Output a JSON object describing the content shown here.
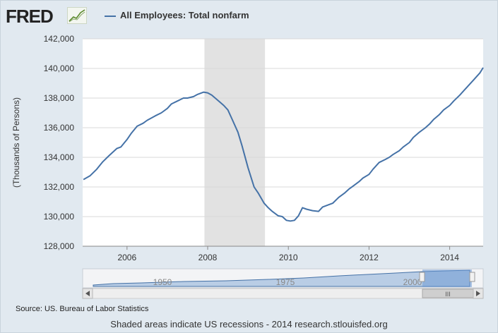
{
  "header": {
    "logo_text": "FRED",
    "logo_icon": "fred-graph-icon",
    "series_color": "#4572a7"
  },
  "footer": {
    "source": "Source: US. Bureau of Labor Statistics",
    "note": "Shaded areas indicate US recessions - 2014 research.stlouisfed.org"
  },
  "navigator": {
    "tick_labels": [
      "1950",
      "1975",
      "2000"
    ],
    "scroll_left_icon": "left-arrow-icon",
    "scroll_right_icon": "right-arrow-icon",
    "grip_label": "III"
  },
  "chart_data": {
    "type": "line",
    "title": "",
    "xlabel": "",
    "ylabel": "(Thousands of Persons)",
    "xlim": [
      2004.9,
      2014.83
    ],
    "ylim": [
      128000,
      142000
    ],
    "yticks": [
      128000,
      130000,
      132000,
      134000,
      136000,
      138000,
      140000,
      142000
    ],
    "ytick_labels": [
      "128,000",
      "130,000",
      "132,000",
      "134,000",
      "136,000",
      "138,000",
      "140,000",
      "142,000"
    ],
    "xticks": [
      2006,
      2008,
      2010,
      2012,
      2014
    ],
    "xtick_labels": [
      "2006",
      "2008",
      "2010",
      "2012",
      "2014"
    ],
    "grid": true,
    "legend_position": "top-left",
    "recession_band": [
      2007.92,
      2009.42
    ],
    "series": [
      {
        "name": "All Employees: Total nonfarm",
        "color": "#4572a7",
        "x": [
          2004.92,
          2005.08,
          2005.25,
          2005.4,
          2005.55,
          2005.75,
          2005.85,
          2006.0,
          2006.1,
          2006.25,
          2006.4,
          2006.5,
          2006.7,
          2006.85,
          2007.0,
          2007.1,
          2007.25,
          2007.4,
          2007.5,
          2007.65,
          2007.75,
          2007.9,
          2008.0,
          2008.1,
          2008.25,
          2008.4,
          2008.5,
          2008.6,
          2008.75,
          2008.85,
          2009.0,
          2009.15,
          2009.25,
          2009.4,
          2009.5,
          2009.6,
          2009.75,
          2009.85,
          2009.95,
          2010.05,
          2010.15,
          2010.25,
          2010.35,
          2010.45,
          2010.6,
          2010.75,
          2010.85,
          2011.0,
          2011.1,
          2011.25,
          2011.4,
          2011.5,
          2011.6,
          2011.75,
          2011.85,
          2012.0,
          2012.1,
          2012.25,
          2012.4,
          2012.5,
          2012.6,
          2012.75,
          2012.85,
          2013.0,
          2013.1,
          2013.25,
          2013.4,
          2013.5,
          2013.6,
          2013.75,
          2013.85,
          2014.0,
          2014.1,
          2014.25,
          2014.4,
          2014.5,
          2014.6,
          2014.75,
          2014.83
        ],
        "values": [
          132500,
          132750,
          133200,
          133700,
          134100,
          134600,
          134700,
          135200,
          135600,
          136100,
          136300,
          136500,
          136800,
          137000,
          137300,
          137600,
          137800,
          138000,
          138000,
          138100,
          138250,
          138400,
          138350,
          138200,
          137850,
          137500,
          137200,
          136600,
          135700,
          134800,
          133300,
          132000,
          131600,
          130900,
          130600,
          130350,
          130050,
          130000,
          129750,
          129700,
          129750,
          130050,
          130600,
          130500,
          130400,
          130350,
          130650,
          130800,
          130900,
          131300,
          131600,
          131850,
          132050,
          132350,
          132600,
          132850,
          133200,
          133650,
          133850,
          134000,
          134200,
          134450,
          134700,
          135000,
          135350,
          135700,
          136000,
          136250,
          136550,
          136900,
          137200,
          137500,
          137800,
          138200,
          138650,
          138950,
          139250,
          139700,
          140050
        ]
      }
    ]
  }
}
